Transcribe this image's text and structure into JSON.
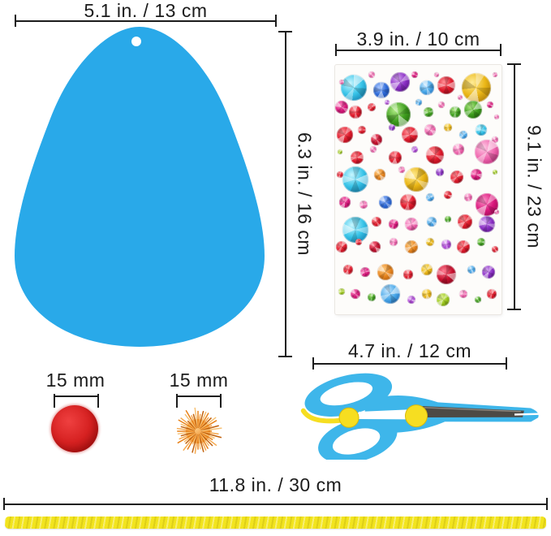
{
  "labels": {
    "egg_width": "5.1 in. / 13 cm",
    "egg_height": "6.3 in. / 16 cm",
    "sheet_width": "3.9 in. / 10 cm",
    "sheet_height": "9.1 in. / 23 cm",
    "scissors_length": "4.7 in. / 12 cm",
    "pom_red_size": "15 mm",
    "pom_gold_size": "15 mm",
    "chenille_length": "11.8 in. / 30 cm"
  },
  "colors": {
    "egg": "#29a9e9",
    "scissors_body": "#3eb6ea",
    "scissors_accent": "#f6de21",
    "blade": "#4d4a45",
    "pom_red": "#d62121",
    "pom_gold": "#f0953f",
    "chenille": "#f2e41e",
    "dimension_line": "#1c1c1c",
    "sheet_bg": "#fdfcfa"
  },
  "gem_sheet": {
    "palette": {
      "cyan": [
        "#38c4e8",
        "#c8f6ff",
        "#0b74a6"
      ],
      "skyblue": [
        "#4aa8e8",
        "#c6e7ff",
        "#1560b0"
      ],
      "blue": [
        "#2f6bd8",
        "#aac8ff",
        "#123f96"
      ],
      "red": [
        "#e01b2c",
        "#ff9097",
        "#8e0413"
      ],
      "crimson": [
        "#c8102e",
        "#ff8296",
        "#700217"
      ],
      "gold": [
        "#eab616",
        "#ffec96",
        "#9c6d05"
      ],
      "orange": [
        "#e8861f",
        "#ffd08a",
        "#9e4e06"
      ],
      "green": [
        "#3f9e1f",
        "#b2ec86",
        "#1d5e08"
      ],
      "lime": [
        "#9dc91e",
        "#e8f7a0",
        "#5c7e06"
      ],
      "pink": [
        "#f06ab0",
        "#ffc9e5",
        "#b01f6e"
      ],
      "magenta": [
        "#d9187c",
        "#ff90c8",
        "#8c0448"
      ],
      "purple": [
        "#8a2fc4",
        "#d9aaf4",
        "#4e0f7a"
      ],
      "violet": [
        "#b04ad8",
        "#eac2f9",
        "#6b1590"
      ]
    },
    "gems": [
      [
        11,
        9,
        16,
        "cyan"
      ],
      [
        4,
        7,
        3,
        "pink"
      ],
      [
        22,
        4,
        4,
        "pink"
      ],
      [
        28,
        10,
        10,
        "blue"
      ],
      [
        39,
        7,
        12,
        "purple"
      ],
      [
        48,
        4,
        4,
        "magenta"
      ],
      [
        55,
        9,
        9,
        "skyblue"
      ],
      [
        61,
        4,
        3,
        "pink"
      ],
      [
        67,
        8,
        11,
        "red"
      ],
      [
        75,
        13,
        3,
        "pink"
      ],
      [
        85,
        9,
        18,
        "gold"
      ],
      [
        96,
        4,
        3,
        "pink"
      ],
      [
        4,
        17,
        8,
        "magenta"
      ],
      [
        12,
        19,
        8,
        "red"
      ],
      [
        22,
        17,
        5,
        "red"
      ],
      [
        31,
        15,
        3,
        "violet"
      ],
      [
        38,
        20,
        15,
        "green"
      ],
      [
        50,
        15,
        4,
        "skyblue"
      ],
      [
        56,
        19,
        6,
        "green"
      ],
      [
        64,
        16,
        4,
        "pink"
      ],
      [
        72,
        19,
        7,
        "green"
      ],
      [
        83,
        18,
        11,
        "green"
      ],
      [
        93,
        16,
        4,
        "magenta"
      ],
      [
        97,
        21,
        3,
        "pink"
      ],
      [
        6,
        28,
        10,
        "red"
      ],
      [
        16,
        26,
        5,
        "red"
      ],
      [
        25,
        30,
        7,
        "crimson"
      ],
      [
        34,
        25,
        4,
        "purple"
      ],
      [
        45,
        28,
        10,
        "red"
      ],
      [
        57,
        26,
        7,
        "pink"
      ],
      [
        68,
        25,
        5,
        "gold"
      ],
      [
        77,
        28,
        5,
        "skyblue"
      ],
      [
        88,
        26,
        7,
        "cyan"
      ],
      [
        96,
        30,
        4,
        "pink"
      ],
      [
        3,
        35,
        3,
        "lime"
      ],
      [
        13,
        37,
        8,
        "red"
      ],
      [
        23,
        34,
        4,
        "pink"
      ],
      [
        36,
        37,
        8,
        "red"
      ],
      [
        48,
        34,
        4,
        "violet"
      ],
      [
        60,
        36,
        11,
        "red"
      ],
      [
        74,
        34,
        7,
        "pink"
      ],
      [
        91,
        35,
        15,
        "pink"
      ],
      [
        12,
        46,
        16,
        "cyan"
      ],
      [
        27,
        44,
        7,
        "orange"
      ],
      [
        3,
        44,
        4,
        "red"
      ],
      [
        40,
        42,
        4,
        "pink"
      ],
      [
        49,
        46,
        15,
        "gold"
      ],
      [
        63,
        43,
        5,
        "purple"
      ],
      [
        73,
        45,
        8,
        "red"
      ],
      [
        85,
        44,
        7,
        "magenta"
      ],
      [
        96,
        43,
        3,
        "lime"
      ],
      [
        6,
        55,
        7,
        "magenta"
      ],
      [
        17,
        56,
        5,
        "pink"
      ],
      [
        30,
        55,
        8,
        "blue"
      ],
      [
        44,
        55,
        10,
        "red"
      ],
      [
        57,
        53,
        5,
        "skyblue"
      ],
      [
        68,
        52,
        5,
        "red"
      ],
      [
        80,
        53,
        5,
        "pink"
      ],
      [
        91,
        56,
        14,
        "magenta"
      ],
      [
        12,
        66,
        16,
        "cyan"
      ],
      [
        25,
        63,
        6,
        "red"
      ],
      [
        35,
        64,
        6,
        "magenta"
      ],
      [
        46,
        64,
        8,
        "pink"
      ],
      [
        58,
        63,
        6,
        "skyblue"
      ],
      [
        68,
        62,
        4,
        "green"
      ],
      [
        78,
        63,
        9,
        "red"
      ],
      [
        91,
        64,
        10,
        "purple"
      ],
      [
        97,
        59,
        3,
        "pink"
      ],
      [
        4,
        73,
        7,
        "red"
      ],
      [
        14,
        71,
        4,
        "red"
      ],
      [
        24,
        73,
        7,
        "crimson"
      ],
      [
        35,
        71,
        5,
        "pink"
      ],
      [
        46,
        73,
        8,
        "orange"
      ],
      [
        57,
        71,
        5,
        "gold"
      ],
      [
        67,
        72,
        6,
        "violet"
      ],
      [
        77,
        73,
        8,
        "red"
      ],
      [
        88,
        71,
        5,
        "green"
      ],
      [
        96,
        74,
        4,
        "red"
      ],
      [
        8,
        82,
        6,
        "red"
      ],
      [
        18,
        83,
        6,
        "magenta"
      ],
      [
        30,
        83,
        10,
        "orange"
      ],
      [
        44,
        84,
        6,
        "red"
      ],
      [
        55,
        82,
        7,
        "gold"
      ],
      [
        67,
        84,
        12,
        "crimson"
      ],
      [
        82,
        82,
        5,
        "skyblue"
      ],
      [
        92,
        83,
        8,
        "purple"
      ],
      [
        4,
        91,
        4,
        "lime"
      ],
      [
        12,
        92,
        6,
        "magenta"
      ],
      [
        22,
        93,
        5,
        "green"
      ],
      [
        33,
        92,
        12,
        "skyblue"
      ],
      [
        46,
        94,
        5,
        "violet"
      ],
      [
        55,
        92,
        6,
        "gold"
      ],
      [
        65,
        94,
        8,
        "lime"
      ],
      [
        77,
        92,
        5,
        "pink"
      ],
      [
        86,
        94,
        4,
        "green"
      ],
      [
        94,
        92,
        6,
        "red"
      ]
    ]
  }
}
